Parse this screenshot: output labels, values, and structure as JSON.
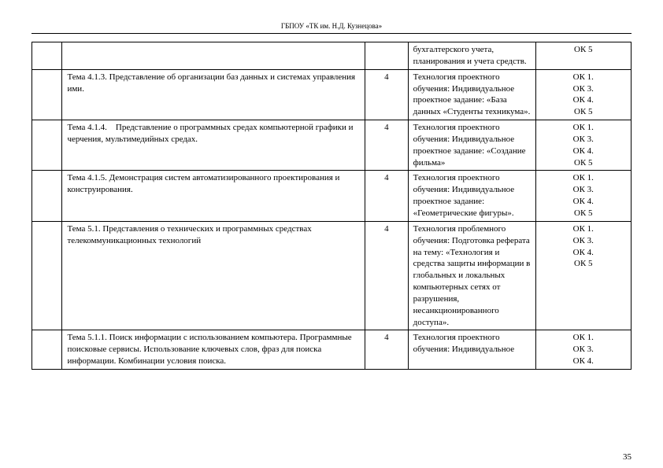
{
  "header": "ГБПОУ  «ТК им. Н.Д. Кузнецова»",
  "page_number": "35",
  "rows": [
    {
      "topic": "",
      "hours": "",
      "tech": "бухгалтерского учета, планирования и учета средств.",
      "ok": [
        "ОК 5"
      ]
    },
    {
      "topic": "Тема 4.1.3. Представление об организации баз данных и системах управления ими.",
      "hours": "4",
      "tech": "Технология проектного обучения: Индивидуальное проектное задание: «База данных «Студенты техникума».",
      "ok": [
        "ОК 1.",
        "ОК 3.",
        "ОК 4.",
        "ОК 5"
      ]
    },
    {
      "topic": "Тема 4.1.4. Представление о программных средах компьютерной графики и черчения, мультимедийных средах.",
      "hours": "4",
      "tech": "Технология проектного обучения: Индивидуальное проектное задание: «Создание фильма»",
      "ok": [
        "ОК 1.",
        "ОК 3.",
        "ОК 4.",
        "ОК 5"
      ]
    },
    {
      "topic": "Тема 4.1.5. Демонстрация систем автоматизированного проектирования и конструирования.",
      "hours": "4",
      "tech": "Технология проектного обучения: Индивидуальное проектное задание: «Геометрические фигуры».",
      "ok": [
        "ОК 1.",
        "ОК 3.",
        "ОК 4.",
        "ОК 5"
      ]
    },
    {
      "topic": "Тема 5.1. Представления о технических и программных средствах телекоммуникационных технологий",
      "hours": "4",
      "tech": "Технология проблемного обучения:  Подготовка реферата на тему: «Технология и средства защиты информации в глобальных и локальных компьютерных сетях от разрушения, несанкционированного доступа».",
      "ok": [
        "ОК 1.",
        "ОК 3.",
        "ОК 4.",
        "ОК 5"
      ]
    },
    {
      "topic": "Тема 5.1.1.  Поиск информации с использованием компьютера. Программные поисковые сервисы. Использование ключевых слов, фраз для поиска информации. Комбинации условия  поиска.",
      "hours": "4",
      "tech": "Технология проектного обучения:  Индивидуальное",
      "ok": [
        "ОК 1.",
        "ОК 3.",
        "ОК 4."
      ]
    }
  ]
}
